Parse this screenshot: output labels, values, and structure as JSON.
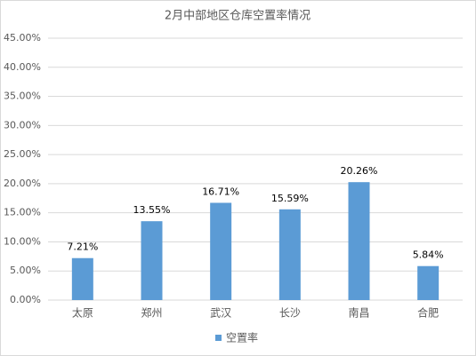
{
  "chart_data": {
    "type": "bar",
    "title": "2月中部地区仓库空置率情况",
    "categories": [
      "太原",
      "郑州",
      "武汉",
      "长沙",
      "南昌",
      "合肥"
    ],
    "series": [
      {
        "name": "空置率",
        "color": "#5b9bd5",
        "values": [
          7.21,
          13.55,
          16.71,
          15.59,
          20.26,
          5.84
        ],
        "value_labels": [
          "7.21%",
          "13.55%",
          "16.71%",
          "15.59%",
          "20.26%",
          "5.84%"
        ]
      }
    ],
    "ylim": [
      0,
      45
    ],
    "yticks": [
      {
        "value": 0,
        "label": "0.00%"
      },
      {
        "value": 5,
        "label": "5.00%"
      },
      {
        "value": 10,
        "label": "10.00%"
      },
      {
        "value": 15,
        "label": "15.00%"
      },
      {
        "value": 20,
        "label": "20.00%"
      },
      {
        "value": 25,
        "label": "25.00%"
      },
      {
        "value": 30,
        "label": "30.00%"
      },
      {
        "value": 35,
        "label": "35.00%"
      },
      {
        "value": 40,
        "label": "40.00%"
      },
      {
        "value": 45,
        "label": "45.00%"
      }
    ],
    "grid": true,
    "legend": "bottom"
  }
}
